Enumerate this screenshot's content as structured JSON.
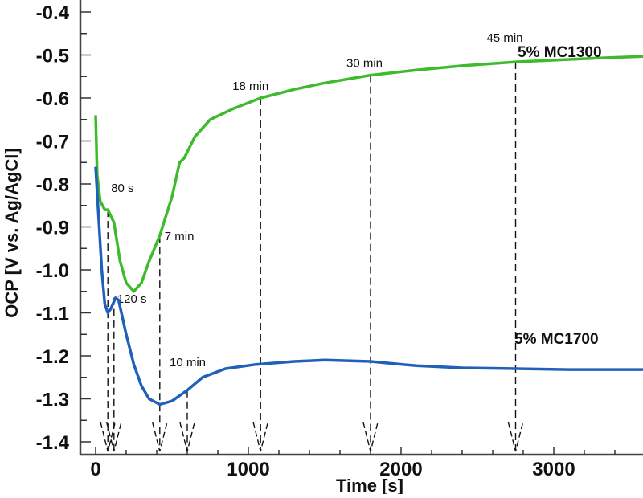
{
  "chart_data": {
    "type": "line",
    "xlabel": "Time [s]",
    "ylabel": "OCP [V vs. Ag/AgCl]",
    "xlim": [
      -100,
      3600
    ],
    "ylim": [
      -1.43,
      -0.38
    ],
    "xticks": [
      0,
      1000,
      2000,
      3000
    ],
    "yticks": [
      -1.4,
      -1.3,
      -1.2,
      -1.1,
      -1.0,
      -0.9,
      -0.8,
      -0.7,
      -0.6,
      -0.5,
      -0.4
    ],
    "ytick_labels": [
      "-1.4",
      "-1.3",
      "-1.2",
      "-1.1",
      "-1.0",
      "-0.9",
      "-0.8",
      "-0.7",
      "-0.6",
      "-0.5",
      "-0.4"
    ],
    "grid": false,
    "series": [
      {
        "name": "5% MC1300",
        "color": "#3dbb2c",
        "x": [
          0,
          10,
          30,
          60,
          80,
          120,
          160,
          200,
          250,
          300,
          350,
          420,
          500,
          550,
          580,
          650,
          750,
          900,
          1080,
          1300,
          1500,
          1800,
          2100,
          2400,
          2750,
          3000,
          3300,
          3600
        ],
        "y": [
          -0.64,
          -0.78,
          -0.84,
          -0.86,
          -0.86,
          -0.89,
          -0.98,
          -1.03,
          -1.05,
          -1.03,
          -0.98,
          -0.92,
          -0.83,
          -0.75,
          -0.74,
          -0.69,
          -0.65,
          -0.625,
          -0.6,
          -0.58,
          -0.565,
          -0.547,
          -0.535,
          -0.525,
          -0.516,
          -0.512,
          -0.507,
          -0.503
        ]
      },
      {
        "name": "5% MC1700",
        "color": "#2060b8",
        "x": [
          0,
          20,
          40,
          60,
          80,
          100,
          130,
          150,
          200,
          250,
          300,
          350,
          420,
          500,
          600,
          700,
          850,
          1050,
          1300,
          1500,
          1800,
          2100,
          2400,
          2750,
          3100,
          3600
        ],
        "y": [
          -0.76,
          -0.88,
          -1.0,
          -1.08,
          -1.1,
          -1.09,
          -1.065,
          -1.07,
          -1.15,
          -1.22,
          -1.27,
          -1.3,
          -1.313,
          -1.305,
          -1.28,
          -1.25,
          -1.23,
          -1.22,
          -1.213,
          -1.21,
          -1.213,
          -1.223,
          -1.228,
          -1.23,
          -1.232,
          -1.232
        ]
      }
    ],
    "annotations": [
      {
        "text": "80 s",
        "x": 80,
        "y": -0.86
      },
      {
        "text": "120 s",
        "x": 120,
        "y": -1.065
      },
      {
        "text": "7 min",
        "x": 420,
        "y": -0.92
      },
      {
        "text": "10 min",
        "x": 600,
        "y": -1.28
      },
      {
        "text": "18 min",
        "x": 1080,
        "y": -0.6
      },
      {
        "text": "30 min",
        "x": 1800,
        "y": -0.547
      },
      {
        "text": "45 min",
        "x": 2750,
        "y": -0.516
      }
    ]
  }
}
